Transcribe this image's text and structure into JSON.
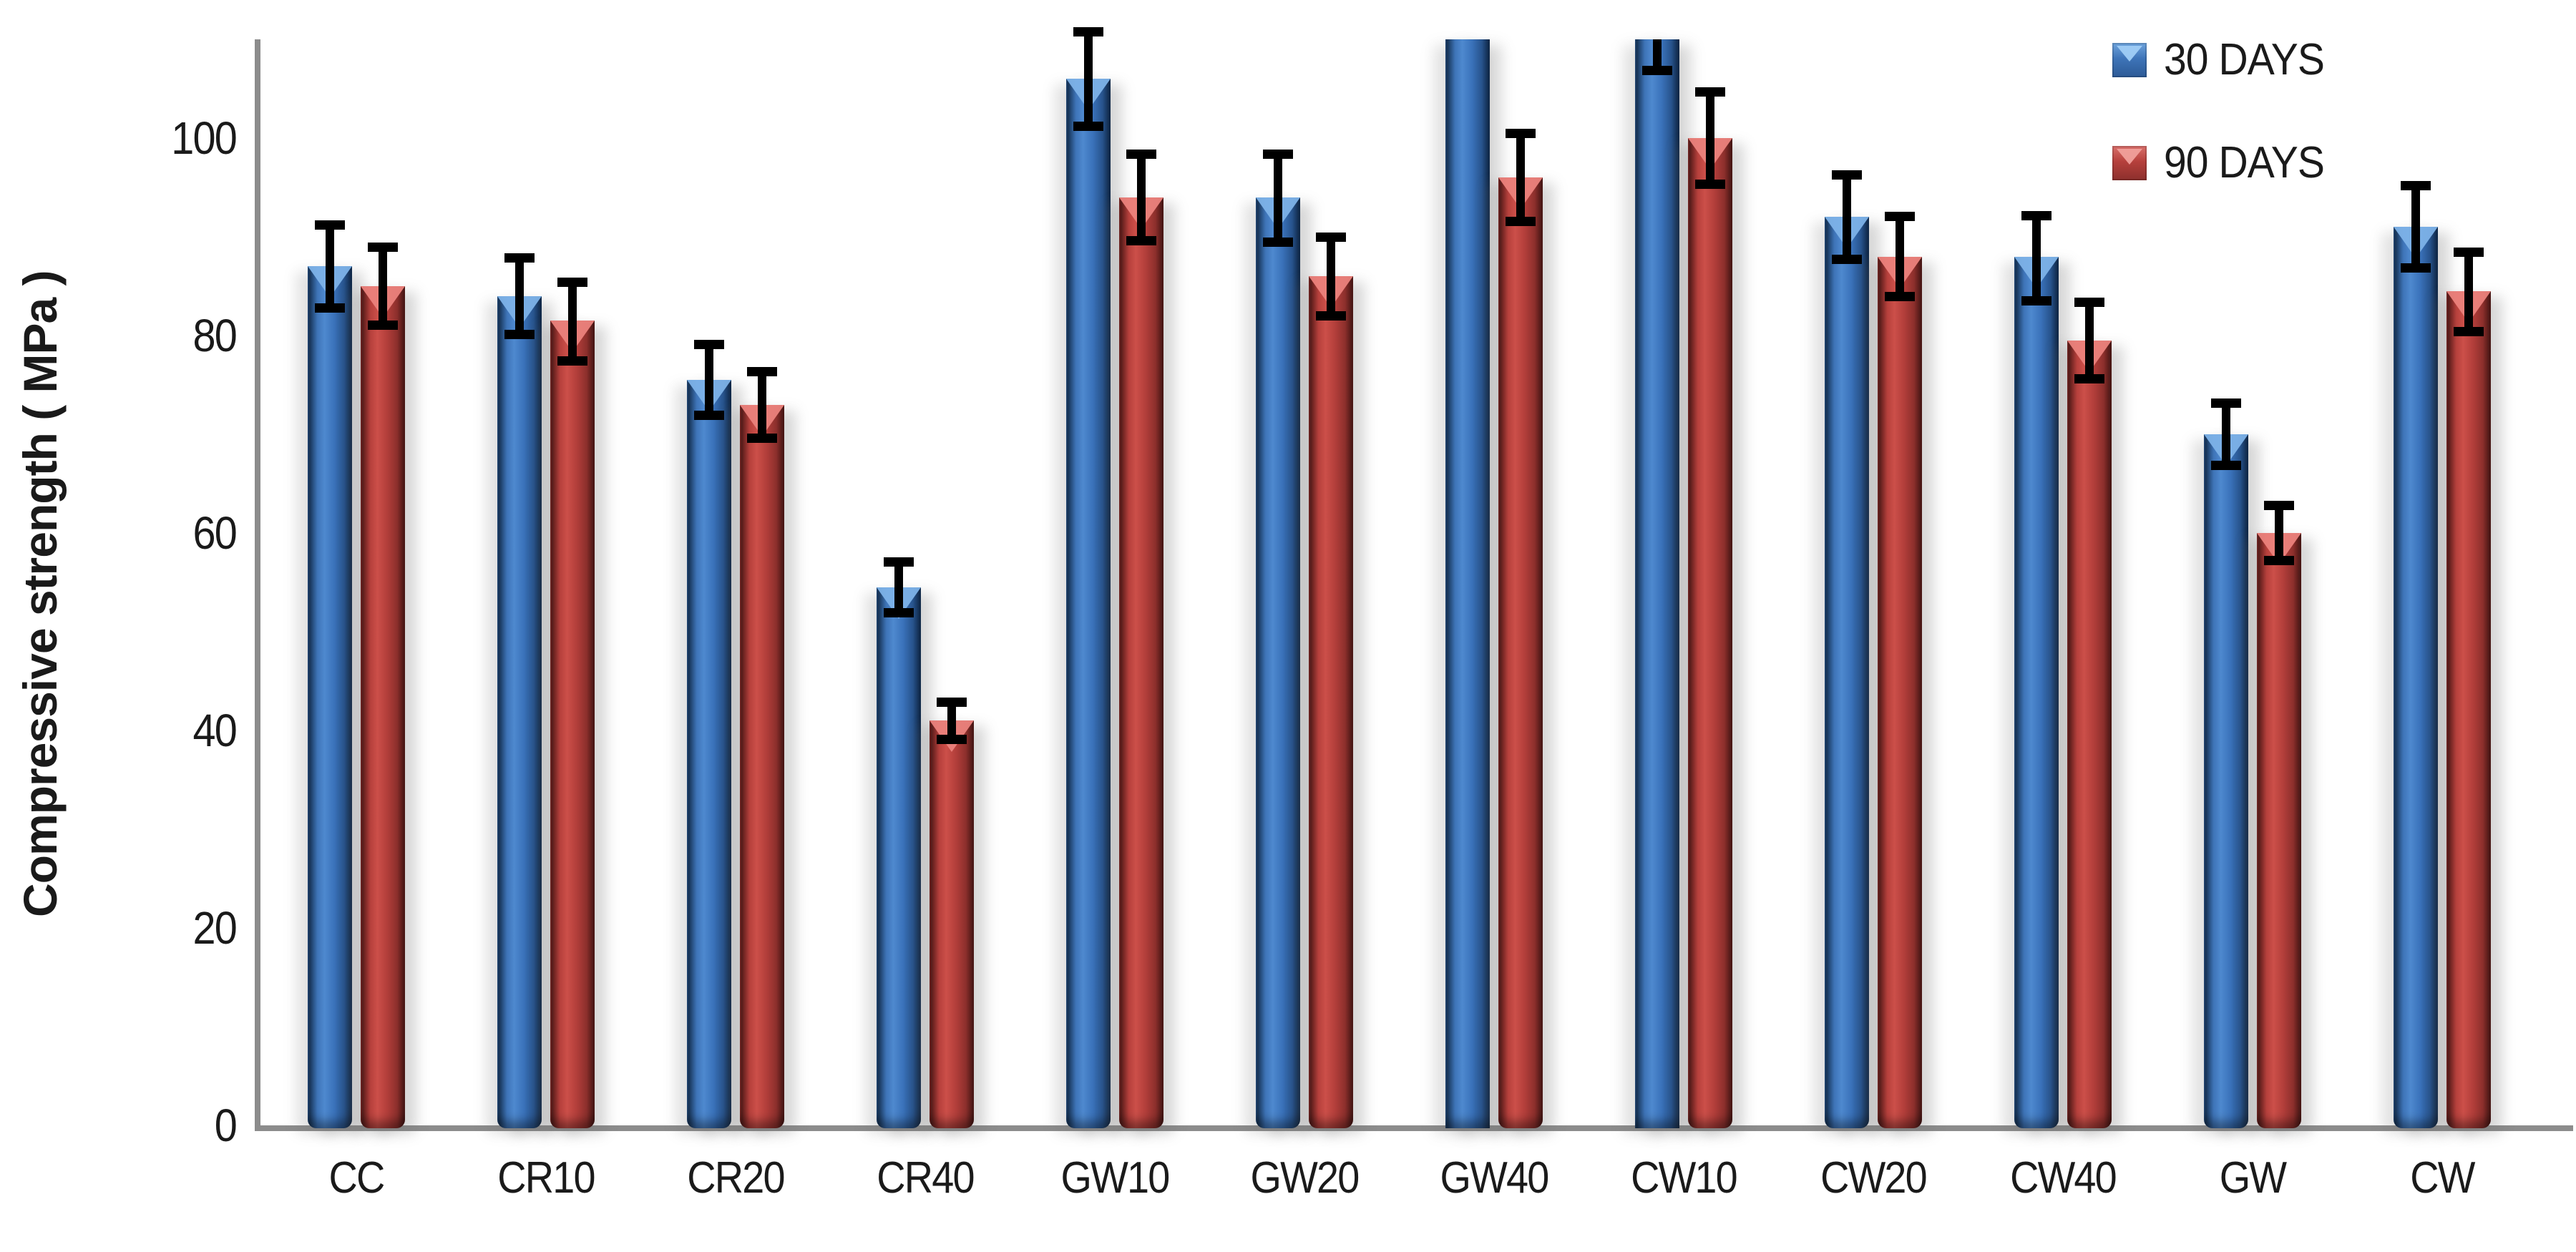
{
  "y_axis": {
    "label": "Compressive strength ( MPa )",
    "ticks": [
      0,
      20,
      40,
      60,
      80,
      100
    ],
    "visible_max": 110,
    "grid": false
  },
  "legend": [
    {
      "label": "30 DAYS",
      "color": "#3c74ba"
    },
    {
      "label": "90 DAYS",
      "color": "#bf4440"
    }
  ],
  "colors": {
    "axis": "#8c8c8c",
    "error_bar": "#000000",
    "background": "#ffffff"
  },
  "chart_data": {
    "type": "bar",
    "title": "",
    "xlabel": "",
    "ylabel": "Compressive strength ( MPa )",
    "ylim": [
      0,
      110
    ],
    "legend_position": "top-right",
    "grid": false,
    "categories": [
      "CC",
      "CR10",
      "CR20",
      "CR40",
      "GW10",
      "GW20",
      "GW40",
      "CW10",
      "CW20",
      "CW40",
      "GW",
      "CW"
    ],
    "series": [
      {
        "name": "30 DAYS",
        "color": "#3c74ba",
        "values": [
          87,
          84,
          75.5,
          54.5,
          106,
          94,
          110,
          110,
          92,
          88,
          70,
          91
        ],
        "error_plus": [
          4.5,
          4.2,
          3.9,
          2.9,
          5.1,
          4.7,
          0,
          0,
          4.6,
          4.5,
          3.5,
          4.5
        ],
        "error_minus": [
          4.5,
          4.2,
          3.9,
          2.9,
          5.1,
          4.9,
          0,
          3.5,
          4.6,
          4.8,
          3.5,
          4.5
        ],
        "clipped_at_top": [
          false,
          false,
          false,
          false,
          false,
          false,
          true,
          true,
          false,
          false,
          false,
          false
        ]
      },
      {
        "name": "90 DAYS",
        "color": "#bf4440",
        "values": [
          85,
          81.5,
          73,
          41,
          94,
          86,
          96,
          100,
          88,
          79.5,
          60,
          84.5
        ],
        "error_plus": [
          4.3,
          4.2,
          3.7,
          2.2,
          4.7,
          4.3,
          4.8,
          5,
          4.4,
          4.2,
          3.1,
          4.3
        ],
        "error_minus": [
          4.3,
          4.4,
          3.7,
          2.2,
          4.7,
          4.3,
          4.8,
          5,
          4.4,
          4.2,
          3.1,
          4.4
        ],
        "clipped_at_top": [
          false,
          false,
          false,
          false,
          false,
          false,
          false,
          false,
          false,
          false,
          false,
          false
        ]
      }
    ]
  }
}
